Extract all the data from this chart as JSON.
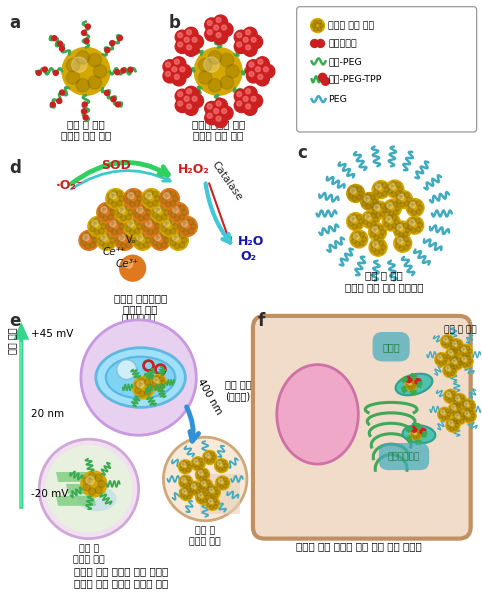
{
  "panel_label_fontsize": 12,
  "panel_label_color": "#2d2d2d",
  "caption_a": "세포 내 표적\n세리아 나노 입자",
  "caption_b": "미토콘드리아 표적\n세리아 나노 입자",
  "caption_c": "세포 밖 표적\n세리아 나노 입자 클러스터",
  "caption_d": "세리아 표면에서의\n항산화 기능",
  "caption_e": "세리아 나노 입자의 표면 전하와\n크기에 따른 선택적 항산화 기능",
  "caption_f": "세리아 나노 입자의 세포 중심 위치 분포도",
  "legend_items": [
    "세리아 나노 입자",
    "올레일아민",
    "지질-PEG",
    "지질-PEG-TPP",
    "PEG"
  ],
  "bg_color": "#ffffff",
  "nano_gold": "#d4a800",
  "nano_gold2": "#c09800",
  "nano_dark": "#8a6a00",
  "nano_orange": "#e07820",
  "nano_red": "#cc2020",
  "peg_green": "#3aaa50",
  "peg_cyan": "#40aabf",
  "arrow_green": "#10c070",
  "arrow_cyan": "#30aad0",
  "caption_fontsize": 7.5,
  "cell_bg": "#f0dcc8",
  "cell_border": "#c09060",
  "nucleus_fill": "#f0a8c8",
  "nucleus_border": "#d070a8",
  "mito_fill": "#50c0b0",
  "mito_border": "#30a090",
  "golgi_color": "#40a858"
}
